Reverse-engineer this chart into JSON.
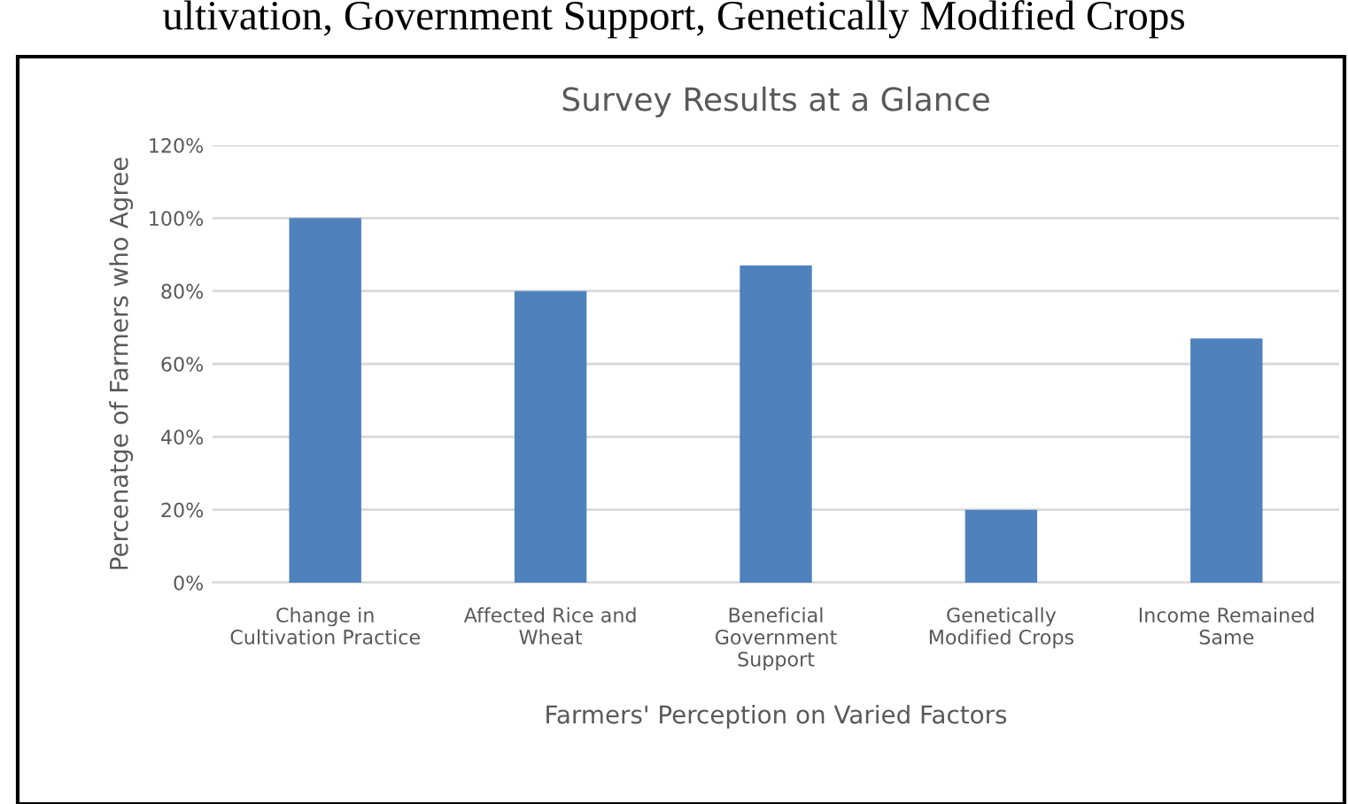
{
  "chart_data": {
    "type": "bar",
    "title": "Survey Results at a Glance",
    "xlabel": "Farmers' Perception on Varied Factors",
    "ylabel": "Percenatge of Farmers who Agree",
    "categories": [
      "Change in\nCultivation Practice",
      "Affected Rice and\nWheat",
      "Beneficial\nGovernment\nSupport",
      "Genetically\nModified Crops",
      "Income Remained\nSame"
    ],
    "values": [
      100,
      80,
      87,
      20,
      67
    ],
    "color": "#4f81bd",
    "ylim": [
      0,
      120
    ],
    "yticks": [
      {
        "value": 0,
        "label": "0%"
      },
      {
        "value": 20,
        "label": "20%"
      },
      {
        "value": 40,
        "label": "40%"
      },
      {
        "value": 60,
        "label": "60%"
      },
      {
        "value": 80,
        "label": "80%"
      },
      {
        "value": 100,
        "label": "100%"
      },
      {
        "value": 120,
        "label": "120%"
      }
    ],
    "grid": "y",
    "legend": false,
    "annotations": [
      "ultivation, Government Support, Genetically Modified Crops"
    ]
  }
}
